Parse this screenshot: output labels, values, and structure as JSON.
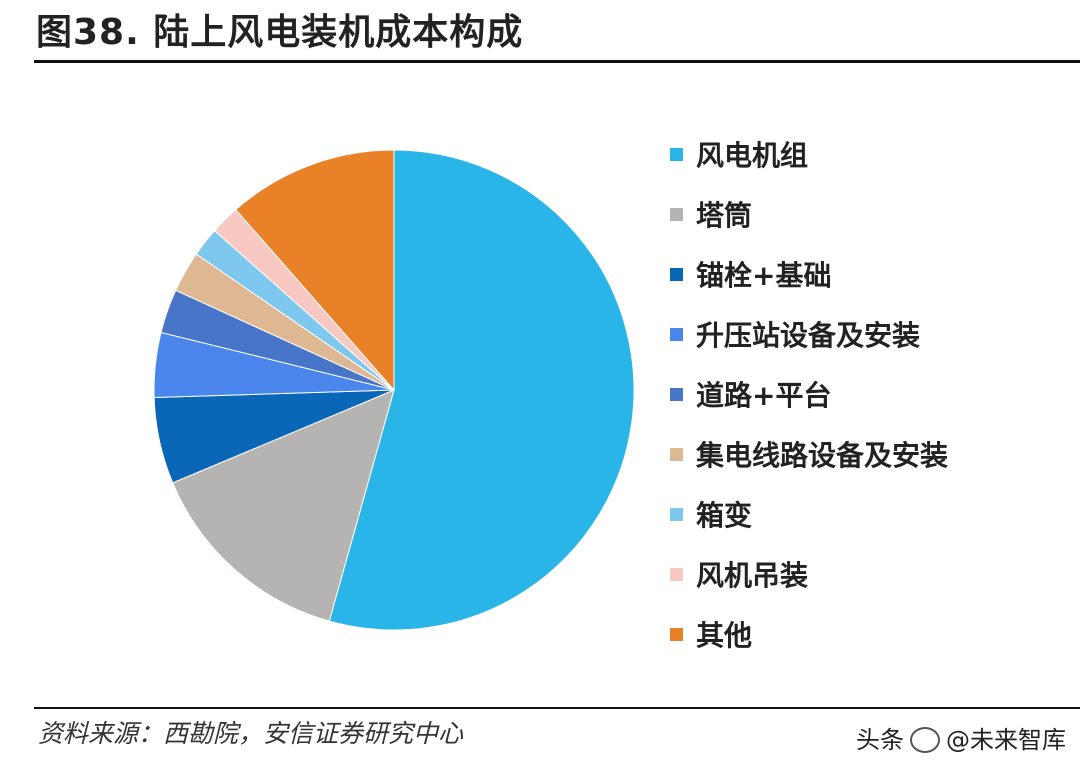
{
  "title": "图38. 陆上风电装机成本构成",
  "chart_data": {
    "type": "pie",
    "categories": [
      "风电机组",
      "塔筒",
      "锚栓+基础",
      "升压站设备及安装",
      "道路+平台",
      "集电线路设备及安装",
      "箱变",
      "风机吊装",
      "其他"
    ],
    "values": [
      55.0,
      14.5,
      5.9,
      4.4,
      3.0,
      2.8,
      2.0,
      2.0,
      11.6
    ],
    "colors": [
      "#29B5E8",
      "#B6B3B3",
      "#0A66B6",
      "#4A86EC",
      "#4875C7",
      "#DDB893",
      "#7EC8EF",
      "#F8C9C3",
      "#E98128"
    ],
    "start_angle_deg": 0,
    "direction": "clockwise",
    "legend": "right"
  },
  "source": "资料来源：西勘院，安信证券研究中心",
  "watermark": {
    "prefix": "头条",
    "handle": "@未来智库"
  }
}
